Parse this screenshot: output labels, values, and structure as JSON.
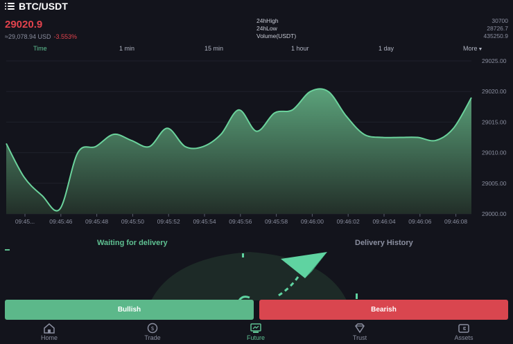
{
  "header": {
    "title": "BTC/USDT",
    "menu_icon": "menu-icon"
  },
  "ticker": {
    "price": "29020.9",
    "usd_value": "≈29,078.94 USD",
    "change": "-3.553%",
    "stats": [
      {
        "label": "24hHigh",
        "value": "30700"
      },
      {
        "label": "24hLow",
        "value": "28726.7"
      },
      {
        "label": "Volume(USDT)",
        "value": "435250.9"
      }
    ]
  },
  "timeframes": [
    "Time",
    "1 min",
    "15 min",
    "1 hour",
    "1 day",
    "More"
  ],
  "chart_data": {
    "type": "area",
    "x_ticks": [
      "09:45...",
      "09:45:46",
      "09:45:48",
      "09:45:50",
      "09:45:52",
      "09:45:54",
      "09:45:56",
      "09:45:58",
      "09:46:00",
      "09:46:02",
      "09:46:04",
      "09:46:06",
      "09:46:08"
    ],
    "y_ticks": [
      "29025.00",
      "29020.00",
      "29015.00",
      "29010.00",
      "29005.00",
      "29000.00"
    ],
    "ylim": [
      29000,
      29025
    ],
    "x": [
      0,
      0.5,
      1,
      1.5,
      2,
      2.5,
      3,
      3.5,
      4,
      4.5,
      5,
      5.5,
      6,
      6.5,
      7,
      7.5,
      8,
      8.5,
      9,
      9.5,
      10,
      10.5,
      11,
      11.5,
      12,
      12.5,
      13
    ],
    "values": [
      29011.5,
      29006,
      29003,
      29000.8,
      29010,
      29011,
      29013,
      29012,
      29011,
      29014,
      29011,
      29011,
      29013,
      29017,
      29013.5,
      29016.5,
      29017,
      29020,
      29020,
      29016,
      29013,
      29012.5,
      29012.5,
      29012.5,
      29012,
      29014,
      29019
    ],
    "line_color": "#6bd39c"
  },
  "tabs": {
    "active": "Waiting for delivery",
    "history": "Delivery History"
  },
  "actions": {
    "bullish": "Bullish",
    "bearish": "Bearish"
  },
  "nav": [
    {
      "label": "Home",
      "icon": "home-icon"
    },
    {
      "label": "Trade",
      "icon": "trade-icon"
    },
    {
      "label": "Future",
      "icon": "future-icon",
      "active": true
    },
    {
      "label": "Trust",
      "icon": "trust-icon"
    },
    {
      "label": "Assets",
      "icon": "assets-icon"
    }
  ]
}
